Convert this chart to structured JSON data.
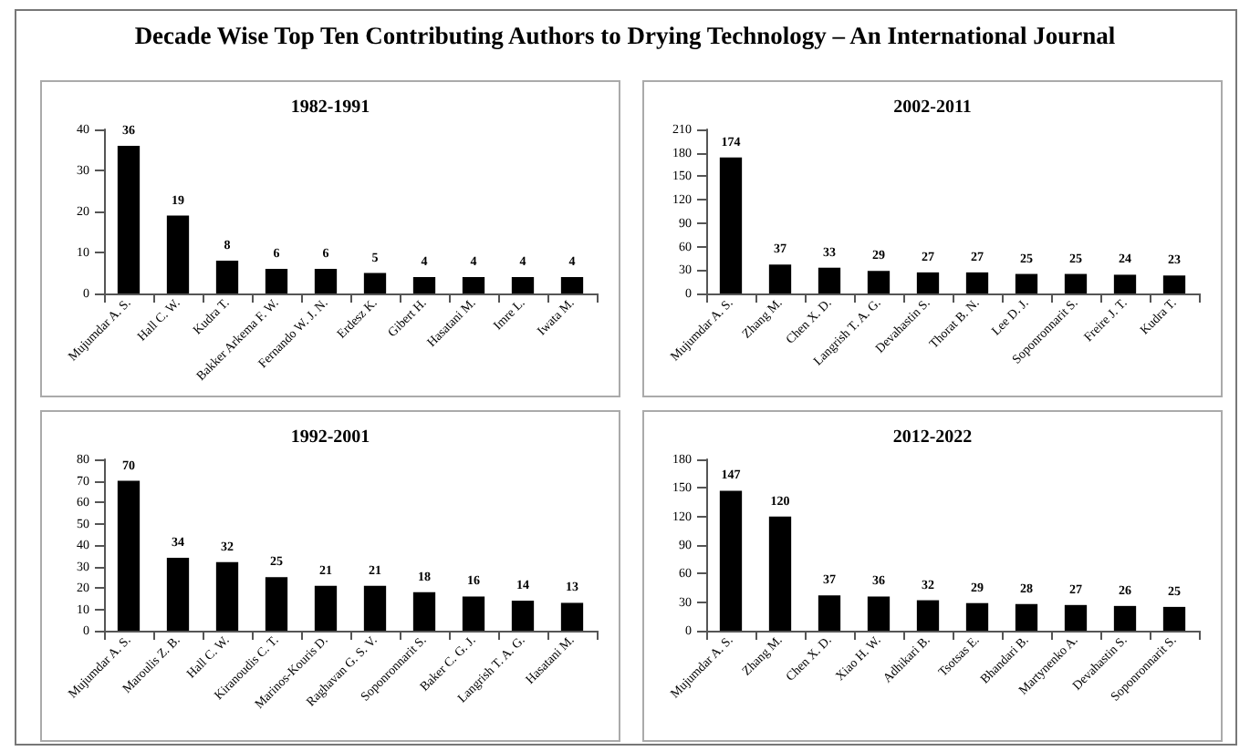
{
  "chart_data": [
    {
      "type": "bar",
      "title": "1982-1991",
      "annotations": [
        "Decade Wise Top Ten Contributing Authors to Drying Technology – An International Journal"
      ],
      "categories": [
        "Mujumdar A. S.",
        "Hall C. W.",
        "Kudra T.",
        "Bakker Arkema F. W.",
        "Fernando W. J. N.",
        "Erdesz K.",
        "Gibert H.",
        "Hasatani M.",
        "Imre L.",
        "Iwata M."
      ],
      "values": [
        36,
        19,
        8,
        6,
        6,
        5,
        4,
        4,
        4,
        4
      ],
      "color": "#000000",
      "ylim": [
        0,
        40
      ],
      "yticks": [
        0,
        10,
        20,
        30,
        40
      ],
      "data_labels": true
    },
    {
      "type": "bar",
      "title": "2002-2011",
      "categories": [
        "Mujumdar A. S.",
        "Zhang M.",
        "Chen X. D.",
        "Langrish T. A. G.",
        "Devahastin S.",
        "Thorat B. N.",
        "Lee D. J.",
        "Soponronnarit S.",
        "Freire J. T.",
        "Kudra T."
      ],
      "values": [
        174,
        37,
        33,
        29,
        27,
        27,
        25,
        25,
        24,
        23
      ],
      "color": "#000000",
      "ylim": [
        0,
        210
      ],
      "yticks": [
        0,
        30,
        60,
        90,
        120,
        150,
        180,
        210
      ],
      "data_labels": true
    },
    {
      "type": "bar",
      "title": "1992-2001",
      "categories": [
        "Mujumdar A. S.",
        "Maroulis Z. B.",
        "Hall C. W.",
        "Kiranoudis C. T.",
        "Marinos-Kouris D.",
        "Raghavan G. S. V.",
        "Soponronnarit S.",
        "Baker C. G. J.",
        "Langrish T. A. G.",
        "Hasatani M."
      ],
      "values": [
        70,
        34,
        32,
        25,
        21,
        21,
        18,
        16,
        14,
        13
      ],
      "color": "#000000",
      "ylim": [
        0,
        80
      ],
      "yticks": [
        0,
        10,
        20,
        30,
        40,
        50,
        60,
        70,
        80
      ],
      "data_labels": true
    },
    {
      "type": "bar",
      "title": "2012-2022",
      "categories": [
        "Mujumdar A. S.",
        "Zhang M.",
        "Chen X. D.",
        "Xiao H. W.",
        "Adhikari B.",
        "Tsotsas E.",
        "Bhandari B.",
        "Martynenko A.",
        "Devahastin S.",
        "Soponronnarit S."
      ],
      "values": [
        147,
        120,
        37,
        36,
        32,
        29,
        28,
        27,
        26,
        25
      ],
      "color": "#000000",
      "ylim": [
        0,
        180
      ],
      "yticks": [
        0,
        30,
        60,
        90,
        120,
        150,
        180
      ],
      "data_labels": true
    }
  ]
}
